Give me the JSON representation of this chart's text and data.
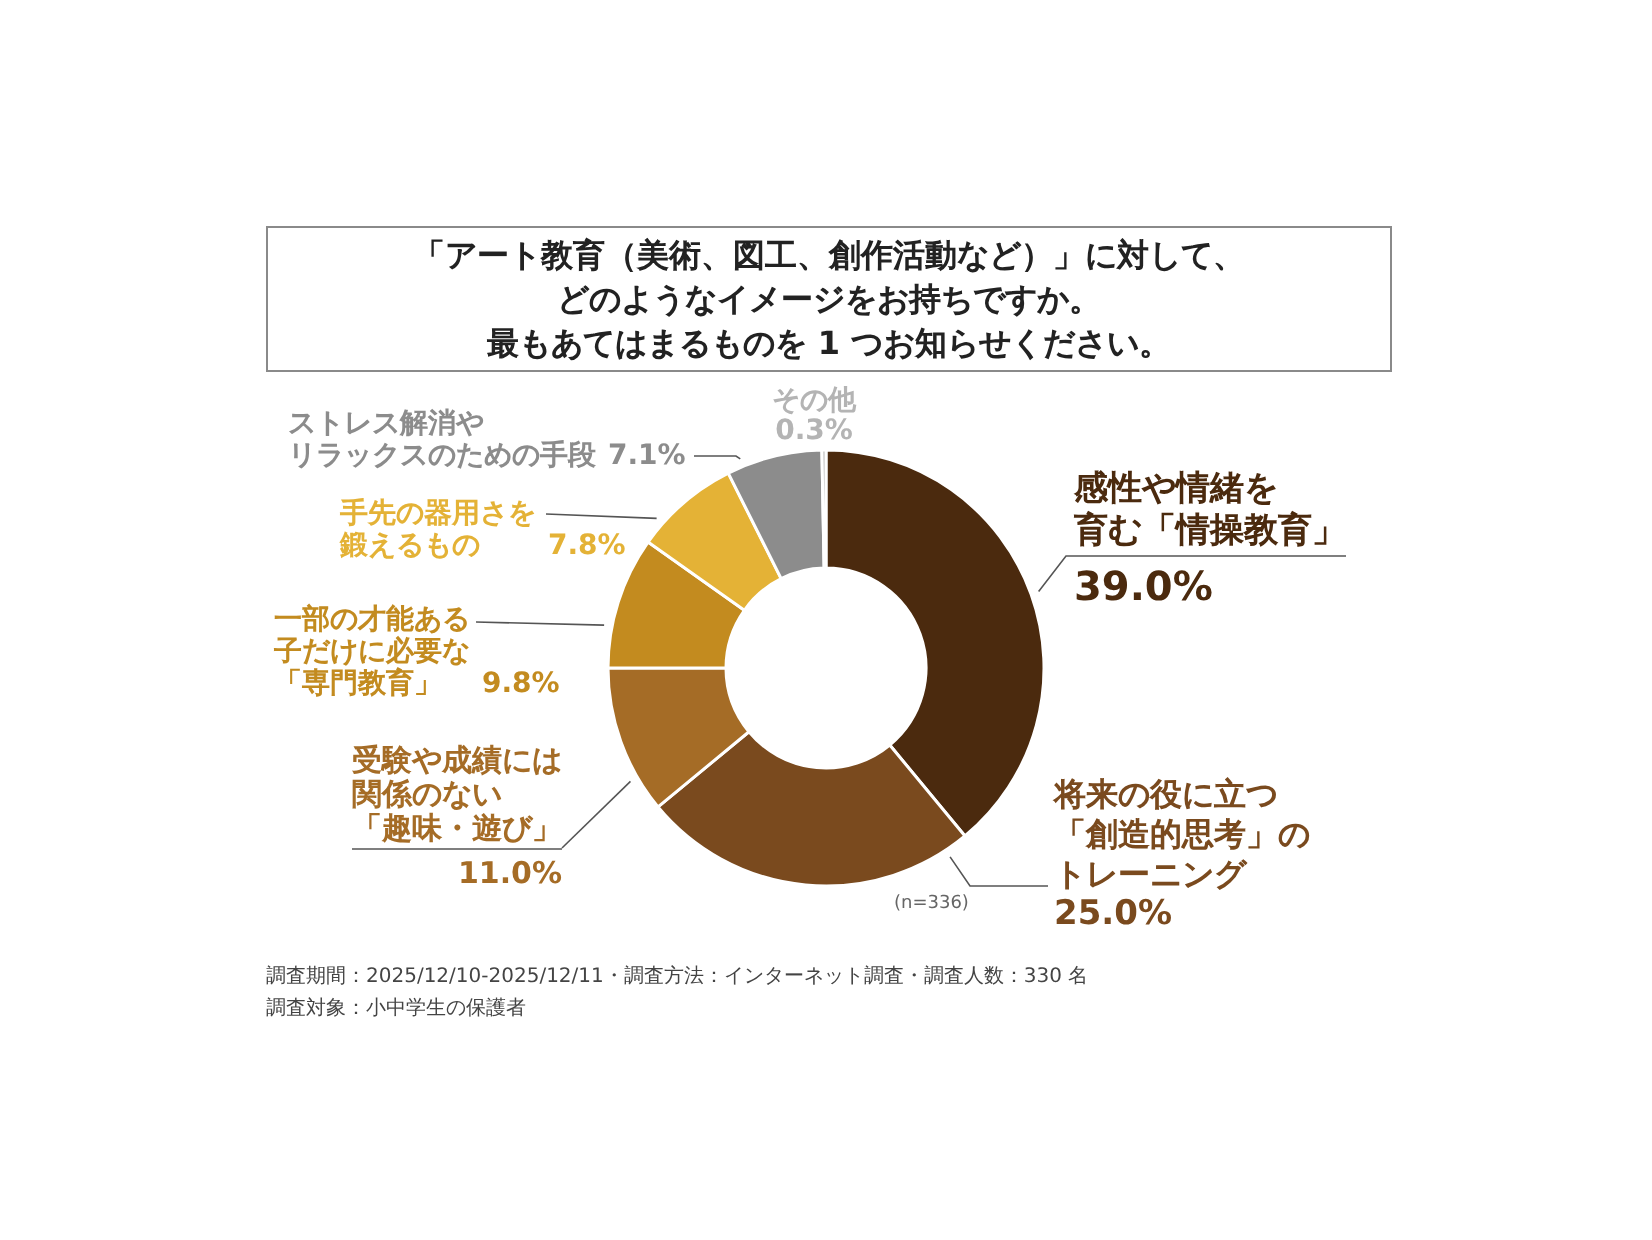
{
  "chart_data": {
    "type": "donut",
    "title": "「アート教育（美術、図工、創作活動など）」に対して、どのようなイメージをお持ちですか。最もあてはまるものを 1 つお知らせください。",
    "categories": [
      "感性や情緒を育む「情操教育」",
      "将来の役に立つ「創造的思考」のトレーニング",
      "受験や成績には関係のない「趣味・遊び」",
      "一部の才能ある子だけに必要な「専門教育」",
      "手先の器用さを鍛えるもの",
      "ストレス解消やリラックスのための手段",
      "その他"
    ],
    "values": [
      39.0,
      25.0,
      11.0,
      9.8,
      7.8,
      7.1,
      0.3
    ],
    "value_labels": [
      "39.0%",
      "25.0%",
      "11.0%",
      "9.8%",
      "7.8%",
      "7.1%",
      "0.3%"
    ],
    "colors": [
      "#4b2a0e",
      "#7a4a1e",
      "#a56c26",
      "#c38b1f",
      "#e4b236",
      "#8c8c8c",
      "#b4b4b4"
    ],
    "annotations": [
      "(n=336)",
      "調査期間：2025/12/10-2025/12/11・調査方法：インターネット調査・調査人数：330 名",
      "調査対象：小中学生の保護者"
    ]
  }
}
